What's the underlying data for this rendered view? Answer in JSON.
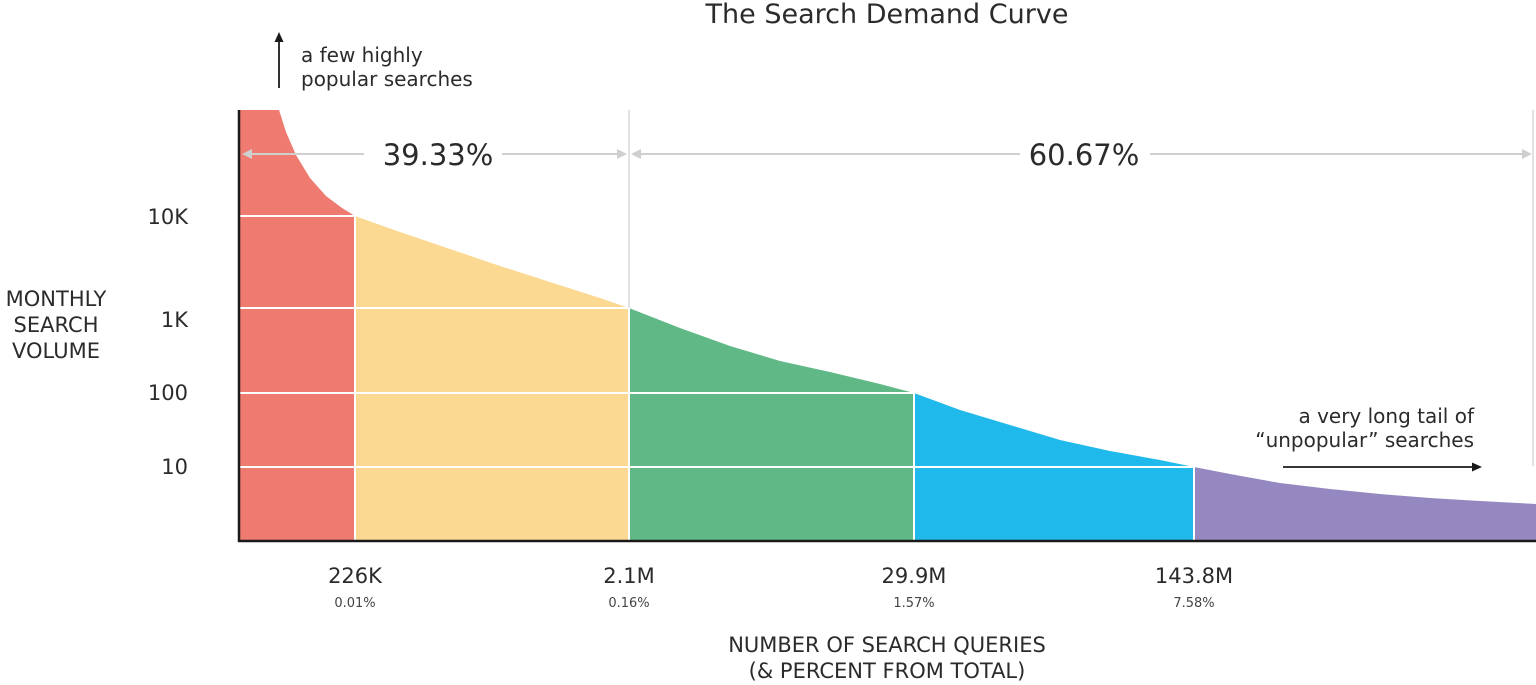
{
  "chart_data": {
    "type": "area",
    "title": "The Search Demand Curve",
    "ylabel_lines": [
      "MONTHLY",
      "SEARCH",
      "VOLUME"
    ],
    "xlabel_lines": [
      "NUMBER OF SEARCH QUERIES",
      "(& PERCENT FROM TOTAL)"
    ],
    "y_scale": "log",
    "y_ticks": [
      {
        "value": 10000,
        "label": "10K"
      },
      {
        "value": 1000,
        "label": "1K"
      },
      {
        "value": 100,
        "label": "100"
      },
      {
        "value": 10,
        "label": "10"
      }
    ],
    "x_breaks": [
      {
        "label": "226K",
        "percent": "0.01%"
      },
      {
        "label": "2.1M",
        "percent": "0.16%"
      },
      {
        "label": "29.9M",
        "percent": "1.57%"
      },
      {
        "label": "143.8M",
        "percent": "7.58%"
      }
    ],
    "segments": [
      {
        "from_break": null,
        "to_break": 0,
        "color": "#ee7a70",
        "volume_range": [
          10000,
          null
        ]
      },
      {
        "from_break": 0,
        "to_break": 1,
        "color": "#fbd993",
        "volume_range": [
          1000,
          10000
        ]
      },
      {
        "from_break": 1,
        "to_break": 2,
        "color": "#60b886",
        "volume_range": [
          100,
          1000
        ]
      },
      {
        "from_break": 2,
        "to_break": 3,
        "color": "#1fbaeb",
        "volume_range": [
          10,
          100
        ]
      },
      {
        "from_break": 3,
        "to_break": null,
        "color": "#9588c0",
        "volume_range": [
          null,
          10
        ]
      }
    ],
    "traffic_shares": [
      {
        "label": "39.33%",
        "from_break": null,
        "to_break": 1
      },
      {
        "label": "60.67%",
        "from_break": 1,
        "to_break": null
      }
    ],
    "annotations": {
      "head": [
        "a few highly",
        "popular searches"
      ],
      "tail": [
        "a very long tail of",
        "“unpopular” searches"
      ]
    },
    "grid": true
  },
  "colors": {
    "axis": "#1a1a1a",
    "grid": "#ffffff",
    "divider": "#d9d9d9",
    "arrow": "#cfcfcf",
    "text": "#2b2b2b"
  }
}
